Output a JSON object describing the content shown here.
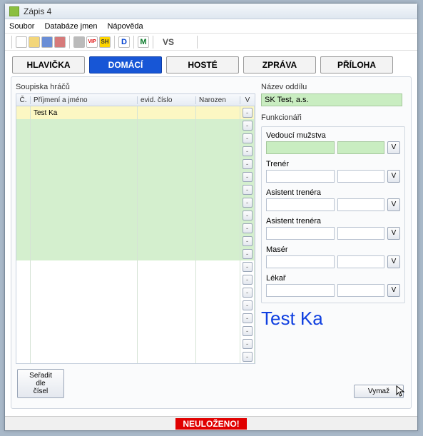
{
  "window": {
    "title": "Zápis 4"
  },
  "menu": {
    "file": "Soubor",
    "db": "Databáze jmen",
    "help": "Nápověda"
  },
  "toolbar": {
    "vip": "VIP",
    "sh": "SH",
    "d": "D",
    "m": "M",
    "vs": "VS"
  },
  "tabs": {
    "hlavicka": "HLAVIČKA",
    "domaci": "DOMÁCÍ",
    "hoste": "HOSTÉ",
    "zprava": "ZPRÁVA",
    "priloha": "PŘÍLOHA"
  },
  "roster": {
    "title": "Soupiska hráčů",
    "cols": {
      "c": "Č.",
      "name": "Příjmení a jméno",
      "evid": "evid. číslo",
      "nar": "Narozen",
      "v": "V"
    },
    "firstName": "Test Ka",
    "btn": "-"
  },
  "club": {
    "title": "Název oddílu",
    "name": "SK Test, a.s."
  },
  "func": {
    "title": "Funkcionáři",
    "vedouci": "Vedoucí mužstva",
    "trener": "Trenér",
    "asist1": "Asistent trenéra",
    "asist2": "Asistent trenéra",
    "maser": "Masér",
    "lekar": "Lékař",
    "v": "V"
  },
  "bigName": "Test Ka",
  "buttons": {
    "sort": "Seřadit dle\nčísel",
    "vymaz": "Vymaž"
  },
  "status": "NEULOŽENO!"
}
